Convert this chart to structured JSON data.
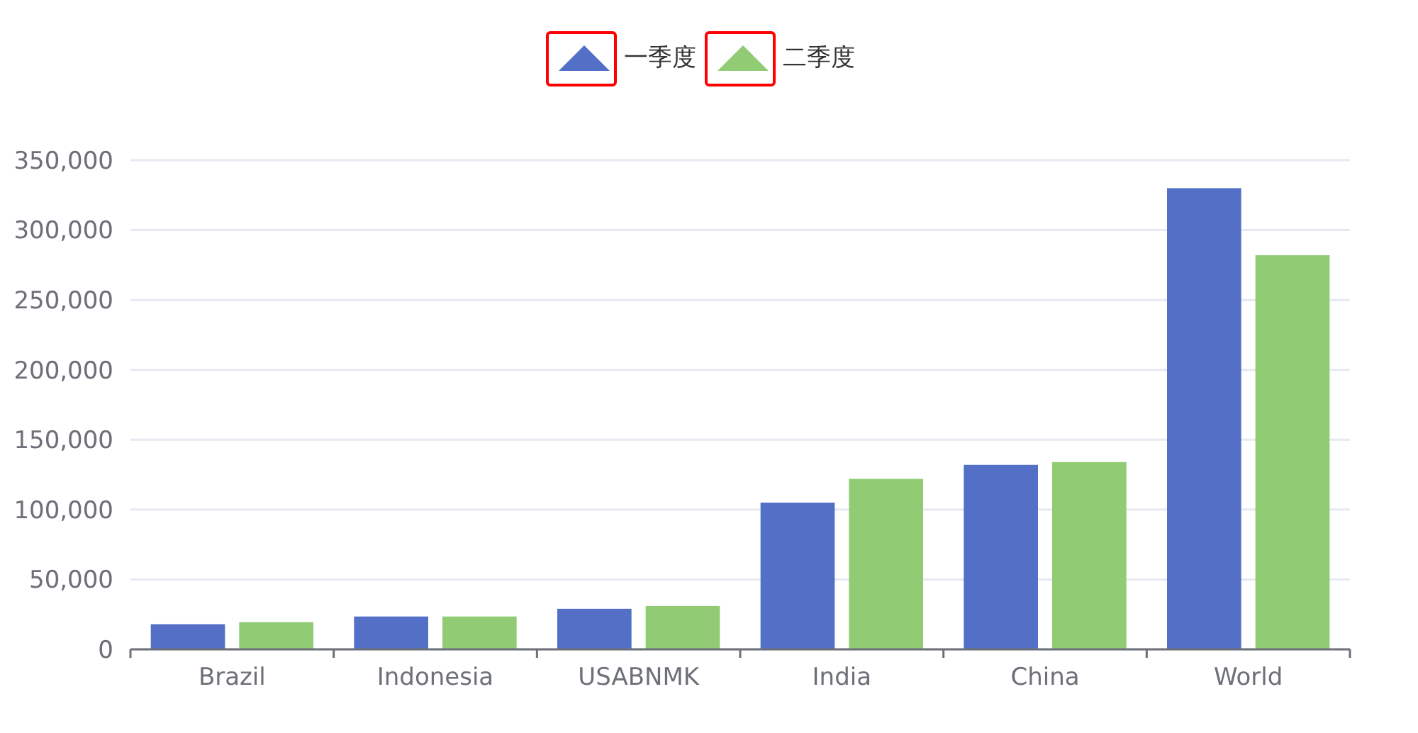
{
  "chart_data": {
    "type": "bar",
    "categories": [
      "Brazil",
      "Indonesia",
      "USABNMK",
      "India",
      "China",
      "World"
    ],
    "series": [
      {
        "name": "一季度",
        "color": "#5470c6",
        "values": [
          18000,
          23500,
          29000,
          105000,
          132000,
          330000
        ]
      },
      {
        "name": "二季度",
        "color": "#91cc75",
        "values": [
          19500,
          23500,
          31000,
          122000,
          134000,
          282000
        ]
      }
    ],
    "ylim": [
      0,
      350000
    ],
    "yticks": [
      0,
      {
        "value": 50000,
        "label": "50,000"
      },
      {
        "value": 100000,
        "label": "100,000"
      },
      {
        "value": 150000,
        "label": "150,000"
      },
      {
        "value": 200000,
        "label": "200,000"
      },
      {
        "value": 250000,
        "label": "250,000"
      },
      {
        "value": 300000,
        "label": "300,000"
      },
      {
        "value": 350000,
        "label": "350,000"
      }
    ],
    "grid": "y",
    "legend": "top",
    "marker": "triangle"
  }
}
